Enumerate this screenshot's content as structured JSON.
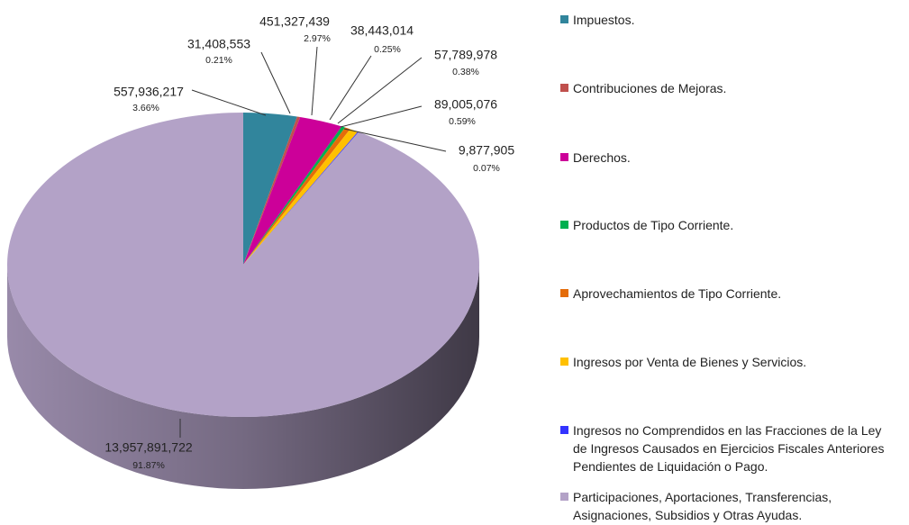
{
  "chart_data": {
    "type": "pie",
    "categories": [
      "Impuestos.",
      "Contribuciones de Mejoras.",
      "Derechos.",
      "Productos de Tipo Corriente.",
      "Aprovechamientos de Tipo Corriente.",
      "Ingresos por Venta de Bienes y Servicios.",
      "Ingresos no Comprendidos en las Fracciones de la Ley de Ingresos Causados en Ejercicios Fiscales Anteriores Pendientes de Liquidación o Pago.",
      "Participaciones, Aportaciones, Transferencias, Asignaciones, Subsidios y Otras Ayudas."
    ],
    "values": [
      557936217,
      31408553,
      451327439,
      38443014,
      57789978,
      89005076,
      9877905,
      13957891722
    ],
    "value_labels": [
      "557,936,217",
      "31,408,553",
      "451,327,439",
      "38,443,014",
      "57,789,978",
      "89,005,076",
      "9,877,905",
      "13,957,891,722"
    ],
    "percentages": [
      3.66,
      0.21,
      2.97,
      0.25,
      0.38,
      0.59,
      0.07,
      91.87
    ],
    "percentage_labels": [
      "3.66%",
      "0.21%",
      "2.97%",
      "0.25%",
      "0.38%",
      "0.59%",
      "0.07%",
      "91.87%"
    ],
    "colors": [
      "#31859c",
      "#c0504d",
      "#cc0099",
      "#00b050",
      "#e46c0a",
      "#ffc000",
      "#3333ff",
      "#b3a2c7"
    ],
    "legend": "right"
  }
}
